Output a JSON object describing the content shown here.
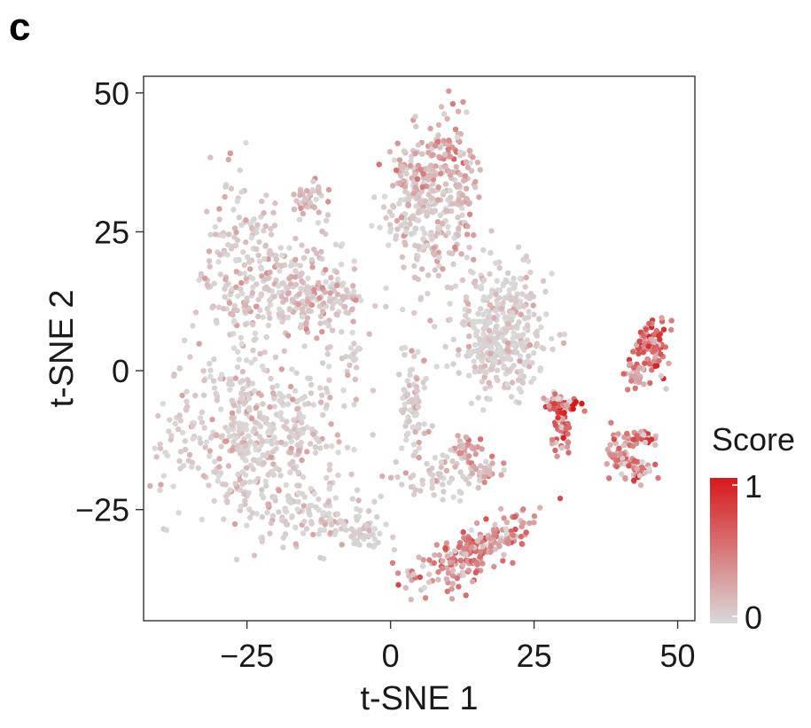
{
  "panel_label": "c",
  "chart_data": {
    "type": "scatter",
    "title": "",
    "xlabel": "t-SNE 1",
    "ylabel": "t-SNE 2",
    "xlim": [
      -43,
      53
    ],
    "ylim": [
      -45,
      53
    ],
    "x_ticks": [
      -25,
      0,
      25,
      50
    ],
    "y_ticks": [
      -25,
      0,
      25,
      50
    ],
    "x_tick_labels": [
      "−25",
      "0",
      "25",
      "50"
    ],
    "y_tick_labels": [
      "−25",
      "0",
      "25",
      "50"
    ],
    "grid": false,
    "color_legend": {
      "title": "Score",
      "min_label": "0",
      "max_label": "1",
      "low_color": "#d9d9d9",
      "high_color": "#d7191c",
      "position": "right"
    },
    "clusters": [
      {
        "cx": -26,
        "cy": 18,
        "sx": 3.5,
        "sy": 8,
        "n": 160,
        "score": 0.12
      },
      {
        "cx": -18,
        "cy": 15,
        "sx": 6,
        "sy": 5,
        "n": 180,
        "score": 0.15
      },
      {
        "cx": -11,
        "cy": 12,
        "sx": 4,
        "sy": 2.5,
        "n": 80,
        "score": 0.2
      },
      {
        "cx": -14,
        "cy": 31,
        "sx": 1.5,
        "sy": 2,
        "n": 40,
        "score": 0.25
      },
      {
        "cx": -7,
        "cy": 3,
        "sx": 0.8,
        "sy": 2.5,
        "n": 20,
        "score": 0.1
      },
      {
        "cx": -24,
        "cy": -12,
        "sx": 8,
        "sy": 7,
        "n": 480,
        "score": 0.1
      },
      {
        "cx": -14,
        "cy": -26,
        "sx": 6,
        "sy": 3,
        "n": 120,
        "score": 0.1
      },
      {
        "cx": -5,
        "cy": -29,
        "sx": 2,
        "sy": 1.5,
        "n": 40,
        "score": 0.08
      },
      {
        "cx": 4,
        "cy": -5,
        "sx": 1.2,
        "sy": 6,
        "n": 80,
        "score": 0.1
      },
      {
        "cx": 8,
        "cy": -19,
        "sx": 4,
        "sy": 2,
        "n": 60,
        "score": 0.1
      },
      {
        "cx": 6,
        "cy": 28,
        "sx": 3.5,
        "sy": 5,
        "n": 220,
        "score": 0.15
      },
      {
        "cx": 10,
        "cy": 41,
        "sx": 2.5,
        "sy": 4,
        "n": 80,
        "score": 0.4
      },
      {
        "cx": 4,
        "cy": 36,
        "sx": 2.5,
        "sy": 2,
        "n": 50,
        "score": 0.35
      },
      {
        "cx": 13,
        "cy": 30,
        "sx": 1.2,
        "sy": 5,
        "n": 40,
        "score": 0.35
      },
      {
        "cx": 19,
        "cy": 7,
        "sx": 4,
        "sy": 5.5,
        "n": 380,
        "score": 0.08
      },
      {
        "cx": 12,
        "cy": -34,
        "sx": 5,
        "sy": 2.2,
        "n": 160,
        "score": 0.55,
        "angle": 0.5
      },
      {
        "cx": 20,
        "cy": -29,
        "sx": 3,
        "sy": 1.5,
        "n": 60,
        "score": 0.45,
        "angle": 0.5
      },
      {
        "cx": 13,
        "cy": -14,
        "sx": 1.5,
        "sy": 1.2,
        "n": 30,
        "score": 0.4
      },
      {
        "cx": 16,
        "cy": -18,
        "sx": 2,
        "sy": 1.2,
        "n": 30,
        "score": 0.35
      },
      {
        "cx": 30,
        "cy": -6,
        "sx": 1.8,
        "sy": 0.8,
        "n": 50,
        "score": 0.85
      },
      {
        "cx": 30,
        "cy": -11,
        "sx": 0.8,
        "sy": 2.5,
        "n": 50,
        "score": 0.8
      },
      {
        "cx": 45,
        "cy": 4,
        "sx": 1.6,
        "sy": 2.5,
        "n": 90,
        "score": 0.75
      },
      {
        "cx": 42,
        "cy": -1,
        "sx": 1,
        "sy": 1.2,
        "n": 25,
        "score": 0.4
      },
      {
        "cx": 40,
        "cy": -15,
        "sx": 1.2,
        "sy": 1.8,
        "n": 50,
        "score": 0.5
      },
      {
        "cx": 43,
        "cy": -18,
        "sx": 1.5,
        "sy": 1,
        "n": 40,
        "score": 0.7
      },
      {
        "cx": 44,
        "cy": -12,
        "sx": 1.5,
        "sy": 0.8,
        "n": 30,
        "score": 0.75
      }
    ]
  }
}
